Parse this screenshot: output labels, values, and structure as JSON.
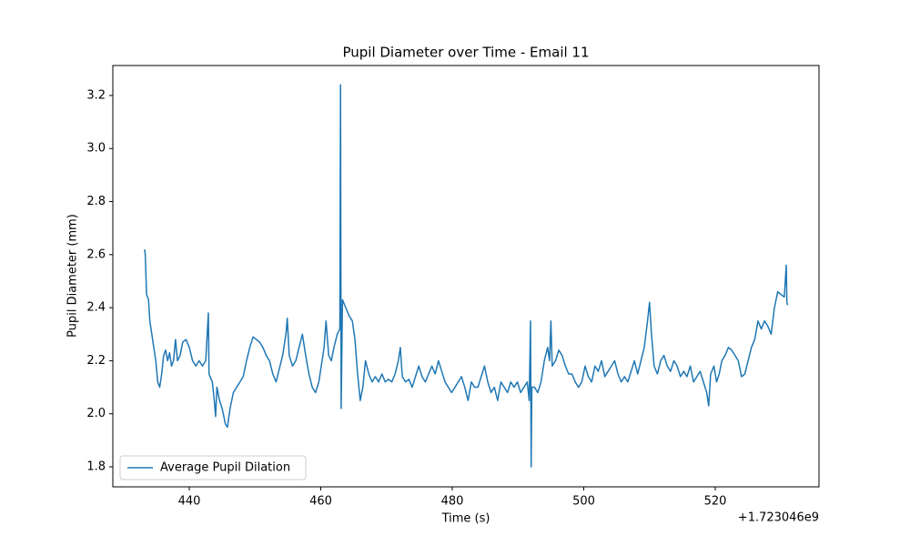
{
  "chart_data": {
    "type": "line",
    "title": "Pupil Diameter over Time - Email 11",
    "xlabel": "Time (s)",
    "ylabel": "Pupil Diameter (mm)",
    "x_offset_label": "+1.723046e9",
    "x": [
      433.2,
      433.3,
      433.5,
      433.8,
      434.0,
      434.3,
      434.6,
      434.9,
      435.2,
      435.5,
      435.8,
      436.1,
      436.4,
      436.7,
      437.0,
      437.3,
      437.6,
      437.9,
      438.2,
      438.6,
      439.0,
      439.5,
      440.0,
      440.5,
      441.0,
      441.5,
      442.0,
      442.5,
      442.9,
      443.0,
      443.5,
      443.8,
      444.0,
      444.2,
      444.6,
      445.0,
      445.5,
      445.8,
      446.2,
      446.7,
      447.2,
      447.7,
      448.2,
      448.7,
      449.2,
      449.7,
      450.2,
      450.7,
      451.2,
      451.7,
      452.2,
      452.7,
      453.2,
      453.7,
      454.2,
      454.7,
      454.9,
      455.2,
      455.7,
      456.2,
      456.7,
      457.2,
      457.7,
      458.2,
      458.7,
      459.2,
      459.7,
      460.2,
      460.5,
      460.8,
      461.2,
      461.6,
      462.0,
      462.5,
      462.9,
      463.0,
      463.1,
      463.3,
      463.8,
      464.3,
      464.8,
      465.2,
      465.6,
      466.0,
      466.4,
      466.8,
      467.3,
      467.8,
      468.3,
      468.8,
      469.3,
      469.8,
      470.3,
      470.8,
      471.3,
      471.8,
      472.1,
      472.4,
      472.9,
      473.4,
      473.9,
      474.4,
      474.9,
      475.4,
      475.9,
      476.4,
      476.9,
      477.4,
      477.9,
      478.4,
      478.9,
      479.4,
      479.9,
      480.4,
      480.9,
      481.4,
      481.9,
      482.4,
      482.9,
      483.4,
      483.9,
      484.4,
      484.9,
      485.4,
      485.9,
      486.4,
      486.9,
      487.4,
      487.9,
      488.4,
      488.9,
      489.4,
      489.9,
      490.4,
      490.9,
      491.4,
      491.7,
      491.9,
      492.0,
      492.1,
      492.5,
      493.0,
      493.5,
      494.0,
      494.5,
      494.8,
      495.0,
      495.2,
      495.7,
      496.2,
      496.7,
      497.2,
      497.7,
      498.2,
      498.7,
      499.2,
      499.7,
      500.2,
      500.7,
      501.2,
      501.7,
      502.2,
      502.7,
      503.2,
      503.7,
      504.2,
      504.7,
      505.2,
      505.7,
      506.2,
      506.7,
      507.2,
      507.7,
      508.2,
      508.7,
      509.2,
      509.7,
      510.0,
      510.3,
      510.7,
      511.2,
      511.7,
      512.2,
      512.7,
      513.2,
      513.7,
      514.2,
      514.7,
      515.2,
      515.7,
      516.2,
      516.7,
      517.2,
      517.7,
      518.2,
      518.7,
      519.0,
      519.3,
      519.8,
      520.2,
      520.6,
      521.0,
      521.5,
      522.0,
      522.5,
      523.0,
      523.5,
      524.0,
      524.5,
      525.0,
      525.5,
      526.0,
      526.5,
      527.0,
      527.5,
      528.0,
      528.5,
      529.0,
      529.5,
      530.5,
      530.8,
      530.9,
      531.0
    ],
    "series": [
      {
        "name": "Average Pupil Dilation",
        "color": "#1f77b4",
        "values": [
          2.62,
          2.6,
          2.45,
          2.43,
          2.35,
          2.3,
          2.25,
          2.2,
          2.12,
          2.1,
          2.15,
          2.22,
          2.24,
          2.2,
          2.23,
          2.18,
          2.2,
          2.28,
          2.2,
          2.22,
          2.27,
          2.28,
          2.25,
          2.2,
          2.18,
          2.2,
          2.18,
          2.2,
          2.38,
          2.15,
          2.12,
          2.05,
          1.99,
          2.1,
          2.05,
          2.02,
          1.96,
          1.95,
          2.02,
          2.08,
          2.1,
          2.12,
          2.14,
          2.2,
          2.25,
          2.29,
          2.28,
          2.27,
          2.25,
          2.22,
          2.2,
          2.15,
          2.12,
          2.17,
          2.22,
          2.3,
          2.36,
          2.22,
          2.18,
          2.2,
          2.25,
          2.3,
          2.22,
          2.15,
          2.1,
          2.08,
          2.12,
          2.2,
          2.25,
          2.35,
          2.22,
          2.2,
          2.25,
          2.3,
          2.32,
          3.24,
          2.02,
          2.43,
          2.4,
          2.37,
          2.35,
          2.28,
          2.15,
          2.05,
          2.1,
          2.2,
          2.15,
          2.12,
          2.14,
          2.12,
          2.15,
          2.12,
          2.13,
          2.12,
          2.15,
          2.2,
          2.25,
          2.14,
          2.12,
          2.13,
          2.1,
          2.14,
          2.18,
          2.14,
          2.12,
          2.15,
          2.18,
          2.15,
          2.2,
          2.16,
          2.12,
          2.1,
          2.08,
          2.1,
          2.12,
          2.14,
          2.1,
          2.05,
          2.12,
          2.1,
          2.1,
          2.14,
          2.18,
          2.12,
          2.08,
          2.1,
          2.05,
          2.12,
          2.1,
          2.08,
          2.12,
          2.1,
          2.12,
          2.08,
          2.1,
          2.12,
          2.05,
          2.35,
          1.8,
          2.1,
          2.1,
          2.08,
          2.12,
          2.2,
          2.25,
          2.2,
          2.35,
          2.18,
          2.2,
          2.24,
          2.22,
          2.18,
          2.15,
          2.15,
          2.12,
          2.1,
          2.12,
          2.18,
          2.14,
          2.12,
          2.18,
          2.16,
          2.2,
          2.14,
          2.16,
          2.18,
          2.2,
          2.15,
          2.12,
          2.14,
          2.12,
          2.16,
          2.2,
          2.15,
          2.2,
          2.25,
          2.35,
          2.42,
          2.3,
          2.18,
          2.15,
          2.2,
          2.22,
          2.18,
          2.16,
          2.2,
          2.18,
          2.14,
          2.16,
          2.14,
          2.18,
          2.12,
          2.14,
          2.16,
          2.12,
          2.08,
          2.03,
          2.15,
          2.18,
          2.12,
          2.15,
          2.2,
          2.22,
          2.25,
          2.24,
          2.22,
          2.2,
          2.14,
          2.15,
          2.2,
          2.25,
          2.28,
          2.35,
          2.32,
          2.35,
          2.33,
          2.3,
          2.4,
          2.46,
          2.44,
          2.56,
          2.42,
          2.41
        ]
      }
    ],
    "xlim": [
      428.37,
      535.78
    ],
    "xticks": [
      440,
      460,
      480,
      500,
      520
    ],
    "ylim": [
      1.7245,
      3.313
    ],
    "yticks": [
      {
        "value": 1.8,
        "label": "1.8"
      },
      {
        "value": 2.0,
        "label": "2.0"
      },
      {
        "value": 2.2,
        "label": "2.2"
      },
      {
        "value": 2.4,
        "label": "2.4"
      },
      {
        "value": 2.6,
        "label": "2.6"
      },
      {
        "value": 2.8,
        "label": "2.8"
      },
      {
        "value": 3.0,
        "label": "3.0"
      },
      {
        "value": 3.2,
        "label": "3.2"
      }
    ],
    "grid": false,
    "legend": "lower left"
  }
}
